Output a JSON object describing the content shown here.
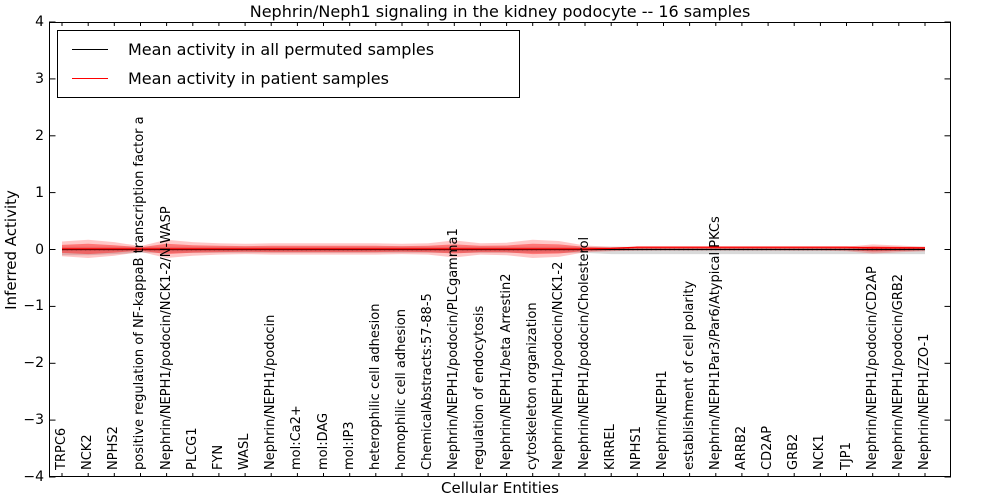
{
  "chart_data": {
    "type": "line",
    "title": "Nephrin/Neph1 signaling in the kidney podocyte -- 16 samples",
    "xlabel": "Cellular Entities",
    "ylabel": "Inferred Activity",
    "ylim": [
      -4,
      4
    ],
    "yticks": [
      4,
      3,
      2,
      1,
      0,
      -1,
      -2,
      -3,
      -4
    ],
    "ytick_labels": [
      "4",
      "3",
      "2",
      "1",
      "0",
      "−1",
      "−2",
      "−3",
      "−4"
    ],
    "grid": false,
    "legend": {
      "position": "upper left",
      "entries": [
        {
          "label": "Mean activity in all permuted samples",
          "color": "#000000"
        },
        {
          "label": "Mean activity in patient samples",
          "color": "#ff0000"
        }
      ]
    },
    "categories": [
      "TRPC6",
      "NCK2",
      "NPHS2",
      "positive regulation of NF-kappaB transcription factor a",
      "Nephrin/NEPH1/podocin/NCK1-2/N-WASP",
      "PLCG1",
      "FYN",
      "WASL",
      "Nephrin/NEPH1/podocin",
      "mol:Ca2+",
      "mol:DAG",
      "mol:IP3",
      "heterophilic cell adhesion",
      "homophilic cell adhesion",
      "ChemicalAbstracts:57-88-5",
      "Nephrin/NEPH1/podocin/PLCgamma1",
      "regulation of endocytosis",
      "Nephrin/NEPH1/beta Arrestin2",
      "cytoskeleton organization",
      "Nephrin/NEPH1/podocin/NCK1-2",
      "Nephrin/NEPH1/podocin/Cholesterol",
      "KIRREL",
      "NPHS1",
      "Nephrin/NEPH1",
      "establishment of cell polarity",
      "Nephrin/NEPH1Par3/Par6/Atypical PKCs",
      "ARRB2",
      "CD2AP",
      "GRB2",
      "NCK1",
      "TJP1",
      "Nephrin/NEPH1/podocin/CD2AP",
      "Nephrin/NEPH1/podocin/GRB2",
      "Nephrin/NEPH1/ZO-1"
    ],
    "series": [
      {
        "name": "Mean activity in all permuted samples",
        "color": "#000000",
        "style": "solid",
        "values": [
          0,
          0,
          0,
          0,
          0,
          0,
          0,
          0,
          0,
          0,
          0,
          0,
          0,
          0,
          0,
          0,
          0,
          0,
          0,
          0,
          0,
          0,
          0,
          0,
          0,
          0,
          0,
          0,
          0,
          0,
          0,
          0,
          0,
          0
        ]
      },
      {
        "name": "zero-baseline-dotted",
        "color": "#000000",
        "style": "dotted",
        "values": [
          0,
          0,
          0,
          0,
          0,
          0,
          0,
          0,
          0,
          0,
          0,
          0,
          0,
          0,
          0,
          0,
          0,
          0,
          0,
          0,
          0,
          0,
          0,
          0,
          0,
          0,
          0,
          0,
          0,
          0,
          0,
          0,
          0,
          0
        ]
      },
      {
        "name": "Mean activity in patient samples",
        "color": "#ff0000",
        "style": "solid",
        "values": [
          0.01,
          0.01,
          0.01,
          0.01,
          0.01,
          0.01,
          0.01,
          0.01,
          0.01,
          0.01,
          0.01,
          0.01,
          0.01,
          0.01,
          0.01,
          0.01,
          0.01,
          0.01,
          0.01,
          0.01,
          0.01,
          0.02,
          0.04,
          0.04,
          0.04,
          0.04,
          0.04,
          0.04,
          0.04,
          0.04,
          0.04,
          0.03,
          0.03,
          0.03
        ]
      }
    ],
    "bands": [
      {
        "name": "permuted-range",
        "color": "#000000",
        "opacity": 0.15,
        "upper": [
          0.05,
          0.05,
          0.05,
          0.05,
          0.05,
          0.05,
          0.05,
          0.05,
          0.05,
          0.05,
          0.05,
          0.05,
          0.05,
          0.05,
          0.05,
          0.05,
          0.05,
          0.05,
          0.05,
          0.05,
          0.05,
          0.05,
          0.05,
          0.05,
          0.05,
          0.05,
          0.05,
          0.05,
          0.05,
          0.05,
          0.05,
          0.05,
          0.05,
          0.05
        ],
        "lower": [
          -0.1,
          -0.1,
          -0.08,
          -0.06,
          -0.06,
          -0.06,
          -0.06,
          -0.06,
          -0.06,
          -0.06,
          -0.06,
          -0.06,
          -0.06,
          -0.06,
          -0.06,
          -0.06,
          -0.06,
          -0.06,
          -0.06,
          -0.06,
          -0.06,
          -0.08,
          -0.08,
          -0.08,
          -0.08,
          -0.08,
          -0.08,
          -0.08,
          -0.08,
          -0.08,
          -0.08,
          -0.08,
          -0.08,
          -0.08
        ]
      },
      {
        "name": "patient-range-outer",
        "color": "#ff0000",
        "opacity": 0.22,
        "upper": [
          0.14,
          0.17,
          0.13,
          0.06,
          0.17,
          0.13,
          0.11,
          0.1,
          0.11,
          0.11,
          0.11,
          0.11,
          0.11,
          0.1,
          0.11,
          0.16,
          0.11,
          0.12,
          0.17,
          0.15,
          0.07,
          0.05,
          0.04,
          0.035,
          0.035,
          0.035,
          0.035,
          0.035,
          0.04,
          0.04,
          0.05,
          0.09,
          0.07,
          0.05
        ],
        "lower": [
          -0.12,
          -0.15,
          -0.11,
          -0.04,
          -0.15,
          -0.11,
          -0.09,
          -0.08,
          -0.09,
          -0.09,
          -0.09,
          -0.09,
          -0.09,
          -0.08,
          -0.09,
          -0.14,
          -0.09,
          -0.1,
          -0.15,
          -0.13,
          -0.05,
          -0.03,
          -0.02,
          -0.015,
          -0.015,
          -0.015,
          -0.015,
          -0.015,
          -0.02,
          -0.02,
          -0.03,
          -0.07,
          -0.05,
          -0.03
        ]
      },
      {
        "name": "patient-range-inner",
        "color": "#ff0000",
        "opacity": 0.4,
        "upper": [
          0.08,
          0.1,
          0.075,
          0.04,
          0.1,
          0.075,
          0.065,
          0.06,
          0.065,
          0.065,
          0.065,
          0.065,
          0.065,
          0.06,
          0.065,
          0.09,
          0.065,
          0.07,
          0.1,
          0.09,
          0.045,
          0.03,
          0.025,
          0.025,
          0.025,
          0.025,
          0.025,
          0.025,
          0.025,
          0.025,
          0.03,
          0.055,
          0.045,
          0.03
        ],
        "lower": [
          -0.06,
          -0.08,
          -0.055,
          -0.02,
          -0.08,
          -0.055,
          -0.045,
          -0.04,
          -0.045,
          -0.045,
          -0.045,
          -0.045,
          -0.045,
          -0.04,
          -0.045,
          -0.07,
          -0.045,
          -0.05,
          -0.08,
          -0.07,
          -0.025,
          -0.01,
          -0.005,
          -0.005,
          -0.005,
          -0.005,
          -0.005,
          -0.005,
          -0.005,
          -0.005,
          -0.01,
          -0.035,
          -0.025,
          -0.01
        ]
      }
    ]
  }
}
